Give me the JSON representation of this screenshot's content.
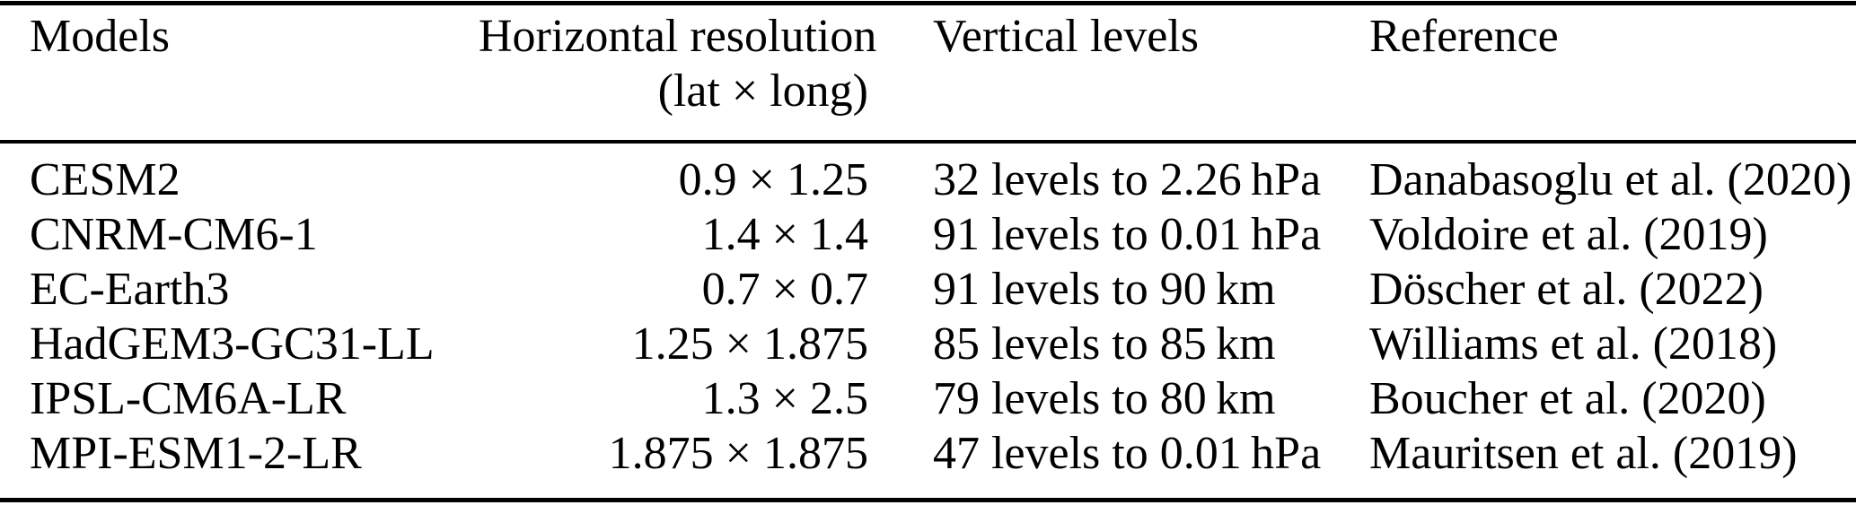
{
  "colors": {
    "background": "#ffffff",
    "text": "#000000",
    "rule": "#000000"
  },
  "table": {
    "columns": [
      {
        "label": "Models",
        "sublabel": ""
      },
      {
        "label": "Horizontal resolution",
        "sublabel": "(lat × long)"
      },
      {
        "label": "Vertical levels",
        "sublabel": ""
      },
      {
        "label": "Reference",
        "sublabel": ""
      }
    ],
    "rows": [
      {
        "model": "CESM2",
        "resolution": "0.9 × 1.25",
        "levels": "32 levels to 2.26 hPa",
        "reference": "Danabasoglu et al. (2020)"
      },
      {
        "model": "CNRM-CM6-1",
        "resolution": "1.4 × 1.4",
        "levels": "91 levels to 0.01 hPa",
        "reference": "Voldoire et al. (2019)"
      },
      {
        "model": "EC-Earth3",
        "resolution": "0.7 × 0.7",
        "levels": "91 levels to 90 km",
        "reference": "Döscher et al. (2022)"
      },
      {
        "model": "HadGEM3-GC31-LL",
        "resolution": "1.25 × 1.875",
        "levels": "85 levels to 85 km",
        "reference": "Williams et al. (2018)"
      },
      {
        "model": "IPSL-CM6A-LR",
        "resolution": "1.3 × 2.5",
        "levels": "79 levels to 80 km",
        "reference": "Boucher et al. (2020)"
      },
      {
        "model": "MPI-ESM1-2-LR",
        "resolution": "1.875 × 1.875",
        "levels": "47 levels to 0.01 hPa",
        "reference": "Mauritsen et al. (2019)"
      }
    ]
  }
}
